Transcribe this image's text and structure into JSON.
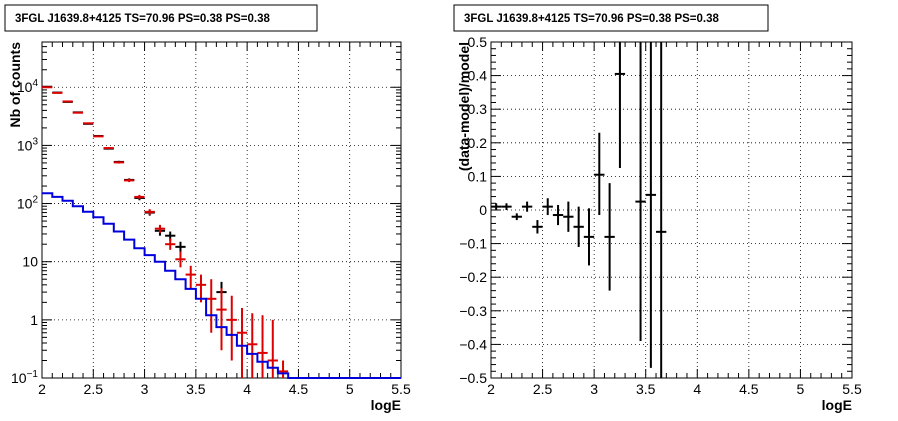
{
  "chart_data": [
    {
      "type": "scatter",
      "title": "3FGL J1639.8+4125 TS=70.96 PS=0.38 PS=0.38",
      "xlabel": "logE",
      "ylabel": "Nb of counts",
      "xlim": [
        2,
        5.5
      ],
      "ylim": [
        0.1,
        60000
      ],
      "yscale": "log",
      "grid": true,
      "x_ticks": [
        {
          "v": 2,
          "label": "2"
        },
        {
          "v": 2.5,
          "label": "2.5"
        },
        {
          "v": 3,
          "label": "3"
        },
        {
          "v": 3.5,
          "label": "3.5"
        },
        {
          "v": 4,
          "label": "4"
        },
        {
          "v": 4.5,
          "label": "4.5"
        },
        {
          "v": 5,
          "label": "5"
        },
        {
          "v": 5.5,
          "label": "5.5"
        }
      ],
      "y_ticks": [
        {
          "v": 0.1,
          "label": "10",
          "sup": "−1"
        },
        {
          "v": 1,
          "label": "1",
          "sup": ""
        },
        {
          "v": 10,
          "label": "10",
          "sup": ""
        },
        {
          "v": 100,
          "label": "10",
          "sup": "2"
        },
        {
          "v": 1000,
          "label": "10",
          "sup": "3"
        },
        {
          "v": 10000,
          "label": "10",
          "sup": "4"
        }
      ],
      "series": [
        {
          "role": "data",
          "color": "#000000",
          "points": [
            {
              "x": 2.05,
              "y": 10200,
              "ylo": 10100,
              "yhi": 10300
            },
            {
              "x": 2.15,
              "y": 8100,
              "ylo": 8010,
              "yhi": 8190
            },
            {
              "x": 2.25,
              "y": 5600,
              "ylo": 5525,
              "yhi": 5675
            },
            {
              "x": 2.35,
              "y": 3700,
              "ylo": 3640,
              "yhi": 3760
            },
            {
              "x": 2.45,
              "y": 2350,
              "ylo": 2300,
              "yhi": 2400
            },
            {
              "x": 2.55,
              "y": 1450,
              "ylo": 1410,
              "yhi": 1490
            },
            {
              "x": 2.65,
              "y": 880,
              "ylo": 850,
              "yhi": 910
            },
            {
              "x": 2.75,
              "y": 520,
              "ylo": 497,
              "yhi": 543
            },
            {
              "x": 2.85,
              "y": 255,
              "ylo": 239,
              "yhi": 271
            },
            {
              "x": 2.95,
              "y": 125,
              "ylo": 114,
              "yhi": 136
            },
            {
              "x": 3.05,
              "y": 70,
              "ylo": 62,
              "yhi": 78
            },
            {
              "x": 3.15,
              "y": 34,
              "ylo": 28,
              "yhi": 40
            },
            {
              "x": 3.25,
              "y": 28,
              "ylo": 23,
              "yhi": 33
            },
            {
              "x": 3.35,
              "y": 18,
              "ylo": 14,
              "yhi": 22
            },
            {
              "x": 3.75,
              "y": 3,
              "ylo": 1.5,
              "yhi": 4.5
            }
          ]
        },
        {
          "role": "model-total",
          "color": "#dd0000",
          "points": [
            {
              "x": 2.05,
              "y": 10000,
              "ylo": 9900,
              "yhi": 10100
            },
            {
              "x": 2.15,
              "y": 8000,
              "ylo": 7910,
              "yhi": 8090
            },
            {
              "x": 2.25,
              "y": 5700,
              "ylo": 5625,
              "yhi": 5775
            },
            {
              "x": 2.35,
              "y": 3650,
              "ylo": 3590,
              "yhi": 3710
            },
            {
              "x": 2.45,
              "y": 2400,
              "ylo": 2350,
              "yhi": 2450
            },
            {
              "x": 2.55,
              "y": 1430,
              "ylo": 1392,
              "yhi": 1468
            },
            {
              "x": 2.65,
              "y": 900,
              "ylo": 870,
              "yhi": 930
            },
            {
              "x": 2.75,
              "y": 510,
              "ylo": 487,
              "yhi": 533
            },
            {
              "x": 2.85,
              "y": 250,
              "ylo": 234,
              "yhi": 266
            },
            {
              "x": 2.95,
              "y": 130,
              "ylo": 119,
              "yhi": 141
            },
            {
              "x": 3.05,
              "y": 72,
              "ylo": 64,
              "yhi": 80
            },
            {
              "x": 3.15,
              "y": 37,
              "ylo": 31,
              "yhi": 43
            },
            {
              "x": 3.25,
              "y": 20,
              "ylo": 16,
              "yhi": 25
            },
            {
              "x": 3.35,
              "y": 11,
              "ylo": 8,
              "yhi": 15
            },
            {
              "x": 3.45,
              "y": 6,
              "ylo": 3.5,
              "yhi": 8.5
            },
            {
              "x": 3.55,
              "y": 4,
              "ylo": 2,
              "yhi": 6
            },
            {
              "x": 3.65,
              "y": 2.3,
              "ylo": 0.6,
              "yhi": 5
            },
            {
              "x": 3.75,
              "y": 1.5,
              "ylo": 0.3,
              "yhi": 3.5
            },
            {
              "x": 3.85,
              "y": 1.0,
              "ylo": 0.2,
              "yhi": 2.6
            },
            {
              "x": 3.95,
              "y": 0.6,
              "ylo": 0.1,
              "yhi": 1.6
            },
            {
              "x": 4.05,
              "y": 0.38,
              "ylo": 0.1,
              "yhi": 1.3
            },
            {
              "x": 4.15,
              "y": 0.27,
              "ylo": 0.1,
              "yhi": 1.2
            },
            {
              "x": 4.25,
              "y": 0.2,
              "ylo": 0.1,
              "yhi": 1.0
            },
            {
              "x": 4.35,
              "y": 0.13,
              "ylo": 0.1,
              "yhi": 0.2
            }
          ]
        },
        {
          "role": "model-background",
          "color": "#0000dd",
          "steps": [
            {
              "x0": 2.0,
              "x1": 2.1,
              "y": 150
            },
            {
              "x0": 2.1,
              "x1": 2.2,
              "y": 130
            },
            {
              "x0": 2.2,
              "x1": 2.3,
              "y": 112
            },
            {
              "x0": 2.3,
              "x1": 2.4,
              "y": 90
            },
            {
              "x0": 2.4,
              "x1": 2.5,
              "y": 72
            },
            {
              "x0": 2.5,
              "x1": 2.6,
              "y": 58
            },
            {
              "x0": 2.6,
              "x1": 2.7,
              "y": 45
            },
            {
              "x0": 2.7,
              "x1": 2.8,
              "y": 33
            },
            {
              "x0": 2.8,
              "x1": 2.9,
              "y": 24
            },
            {
              "x0": 2.9,
              "x1": 3.0,
              "y": 17
            },
            {
              "x0": 3.0,
              "x1": 3.1,
              "y": 13
            },
            {
              "x0": 3.1,
              "x1": 3.2,
              "y": 10
            },
            {
              "x0": 3.2,
              "x1": 3.3,
              "y": 7
            },
            {
              "x0": 3.3,
              "x1": 3.4,
              "y": 5
            },
            {
              "x0": 3.4,
              "x1": 3.5,
              "y": 3.4
            },
            {
              "x0": 3.5,
              "x1": 3.6,
              "y": 2.3
            },
            {
              "x0": 3.6,
              "x1": 3.7,
              "y": 1.2
            },
            {
              "x0": 3.7,
              "x1": 3.8,
              "y": 0.75
            },
            {
              "x0": 3.8,
              "x1": 3.9,
              "y": 0.55
            },
            {
              "x0": 3.9,
              "x1": 4.0,
              "y": 0.36
            },
            {
              "x0": 4.0,
              "x1": 4.1,
              "y": 0.26
            },
            {
              "x0": 4.1,
              "x1": 4.2,
              "y": 0.19
            },
            {
              "x0": 4.2,
              "x1": 4.3,
              "y": 0.15
            },
            {
              "x0": 4.3,
              "x1": 4.4,
              "y": 0.12
            },
            {
              "x0": 4.4,
              "x1": 5.5,
              "y": 0.1
            }
          ]
        }
      ]
    },
    {
      "type": "scatter",
      "title": "3FGL J1639.8+4125 TS=70.96 PS=0.38 PS=0.38",
      "xlabel": "logE",
      "ylabel": "(data-model)/model",
      "xlim": [
        2,
        5.5
      ],
      "ylim": [
        -0.5,
        0.5
      ],
      "yscale": "linear",
      "grid": true,
      "x_ticks": [
        {
          "v": 2,
          "label": "2"
        },
        {
          "v": 2.5,
          "label": "2.5"
        },
        {
          "v": 3,
          "label": "3"
        },
        {
          "v": 3.5,
          "label": "3.5"
        },
        {
          "v": 4,
          "label": "4"
        },
        {
          "v": 4.5,
          "label": "4.5"
        },
        {
          "v": 5,
          "label": "5"
        },
        {
          "v": 5.5,
          "label": "5.5"
        }
      ],
      "y_ticks": [
        {
          "v": -0.5,
          "label": "−0.5"
        },
        {
          "v": -0.4,
          "label": "−0.4"
        },
        {
          "v": -0.3,
          "label": "−0.3"
        },
        {
          "v": -0.2,
          "label": "−0.2"
        },
        {
          "v": -0.1,
          "label": "−0.1"
        },
        {
          "v": 0,
          "label": "0"
        },
        {
          "v": 0.1,
          "label": "0.1"
        },
        {
          "v": 0.2,
          "label": "0.2"
        },
        {
          "v": 0.3,
          "label": "0.3"
        },
        {
          "v": 0.4,
          "label": "0.4"
        },
        {
          "v": 0.5,
          "label": "0.5"
        }
      ],
      "series": [
        {
          "role": "residuals",
          "color": "#000000",
          "points": [
            {
              "x": 2.05,
              "y": 0.01,
              "ylo": 0.0,
              "yhi": 0.02
            },
            {
              "x": 2.15,
              "y": 0.01,
              "ylo": 0.0,
              "yhi": 0.02
            },
            {
              "x": 2.25,
              "y": -0.02,
              "ylo": -0.03,
              "yhi": -0.01
            },
            {
              "x": 2.35,
              "y": 0.01,
              "ylo": -0.005,
              "yhi": 0.025
            },
            {
              "x": 2.45,
              "y": -0.05,
              "ylo": -0.07,
              "yhi": -0.03
            },
            {
              "x": 2.55,
              "y": 0.01,
              "ylo": -0.015,
              "yhi": 0.035
            },
            {
              "x": 2.65,
              "y": -0.015,
              "ylo": -0.045,
              "yhi": 0.015
            },
            {
              "x": 2.75,
              "y": -0.02,
              "ylo": -0.065,
              "yhi": 0.025
            },
            {
              "x": 2.85,
              "y": -0.05,
              "ylo": -0.11,
              "yhi": 0.01
            },
            {
              "x": 2.95,
              "y": -0.08,
              "ylo": -0.165,
              "yhi": 0.005
            },
            {
              "x": 3.05,
              "y": 0.105,
              "ylo": -0.015,
              "yhi": 0.23
            },
            {
              "x": 3.15,
              "y": -0.08,
              "ylo": -0.24,
              "yhi": 0.08
            },
            {
              "x": 3.25,
              "y": 0.405,
              "ylo": 0.125,
              "yhi": 0.5
            },
            {
              "x": 3.45,
              "y": 0.025,
              "ylo": -0.39,
              "yhi": 0.5
            },
            {
              "x": 3.55,
              "y": 0.045,
              "ylo": -0.47,
              "yhi": 0.5
            },
            {
              "x": 3.65,
              "y": -0.065,
              "ylo": -0.5,
              "yhi": 0.5
            }
          ]
        }
      ]
    }
  ]
}
